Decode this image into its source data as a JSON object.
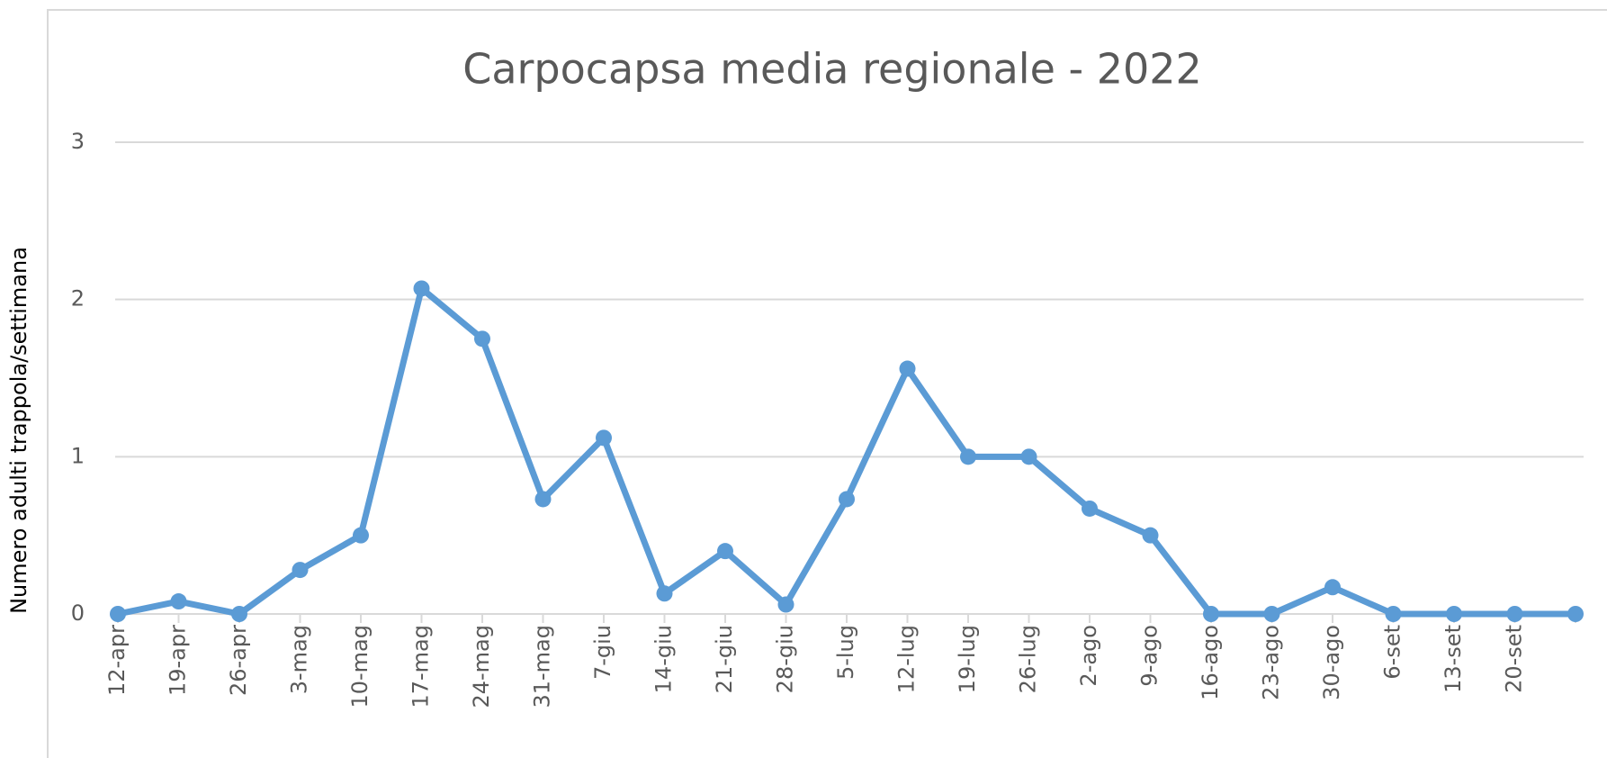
{
  "chart_data": {
    "type": "line",
    "title": "Carpocapsa media regionale - 2022",
    "y_label": "Numero adulti trappola/settimana",
    "categories": [
      "12-apr",
      "19-apr",
      "26-apr",
      "3-mag",
      "10-mag",
      "17-mag",
      "24-mag",
      "31-mag",
      "7-giu",
      "14-giu",
      "21-giu",
      "28-giu",
      "5-lug",
      "12-lug",
      "19-lug",
      "26-lug",
      "2-ago",
      "9-ago",
      "16-ago",
      "23-ago",
      "30-ago",
      "6-set",
      "13-set",
      "20-set",
      null
    ],
    "series": [
      {
        "name": "Carpocapsa",
        "color": "#5b9bd5",
        "values": [
          0,
          0.08,
          0,
          0.28,
          0.5,
          2.07,
          1.75,
          0.73,
          1.12,
          0.13,
          0.4,
          0.06,
          0.73,
          1.56,
          1,
          1,
          0.67,
          0.5,
          0,
          0,
          0.17,
          0,
          0,
          0,
          0
        ]
      }
    ],
    "ylim": [
      0,
      3
    ],
    "yticks": [
      0,
      1,
      2,
      3
    ],
    "grid": true
  }
}
